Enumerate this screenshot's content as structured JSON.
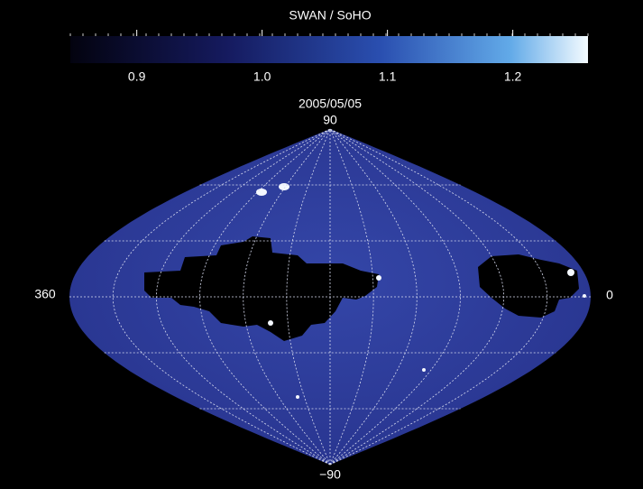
{
  "title": "SWAN / SoHO",
  "colorbar": {
    "lim": [
      0.847,
      1.26
    ],
    "ticks": [
      0.9,
      {
        "value": 1.0,
        "label": "1.0"
      },
      1.1,
      1.2
    ]
  },
  "date": "2005/05/05",
  "map": {
    "lat_top": "90",
    "lat_bottom": "−90",
    "lon_left": "360",
    "lon_right": "0"
  }
}
